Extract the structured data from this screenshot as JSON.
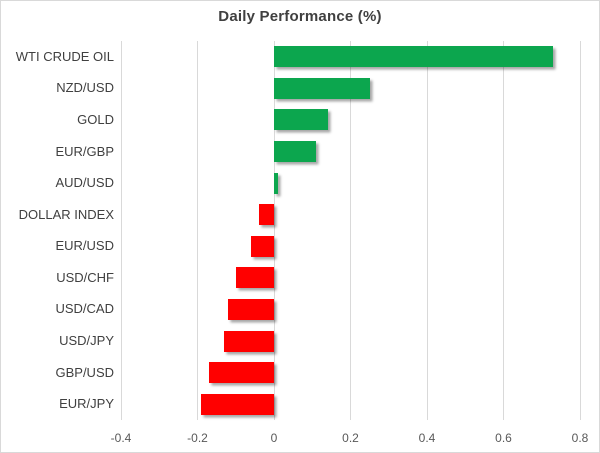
{
  "chart": {
    "title": "Daily Performance (%)"
  },
  "chart_data": {
    "type": "bar",
    "orientation": "horizontal",
    "title": "Daily Performance (%)",
    "categories": [
      "WTI CRUDE OIL",
      "NZD/USD",
      "GOLD",
      "EUR/GBP",
      "AUD/USD",
      "DOLLAR INDEX",
      "EUR/USD",
      "USD/CHF",
      "USD/CAD",
      "USD/JPY",
      "GBP/USD",
      "EUR/JPY"
    ],
    "values": [
      0.73,
      0.25,
      0.14,
      0.11,
      0.01,
      -0.04,
      -0.06,
      -0.1,
      -0.12,
      -0.13,
      -0.17,
      -0.19
    ],
    "xlabel": "",
    "ylabel": "",
    "xlim": [
      -0.4,
      0.8
    ],
    "xticks": [
      -0.4,
      -0.2,
      0,
      0.2,
      0.4,
      0.6,
      0.8
    ],
    "xtick_labels": [
      "-0.4",
      "-0.2",
      "0",
      "0.2",
      "0.4",
      "0.6",
      "0.8"
    ],
    "grid": true,
    "legend": false,
    "colors": {
      "positive": "#0CA64E",
      "negative": "#FF0000",
      "gridline": "#d9d9d9",
      "title": "#404040",
      "category_label": "#404040",
      "tick_label": "#595959",
      "background": "#ffffff",
      "border": "#d9d9d9"
    }
  }
}
